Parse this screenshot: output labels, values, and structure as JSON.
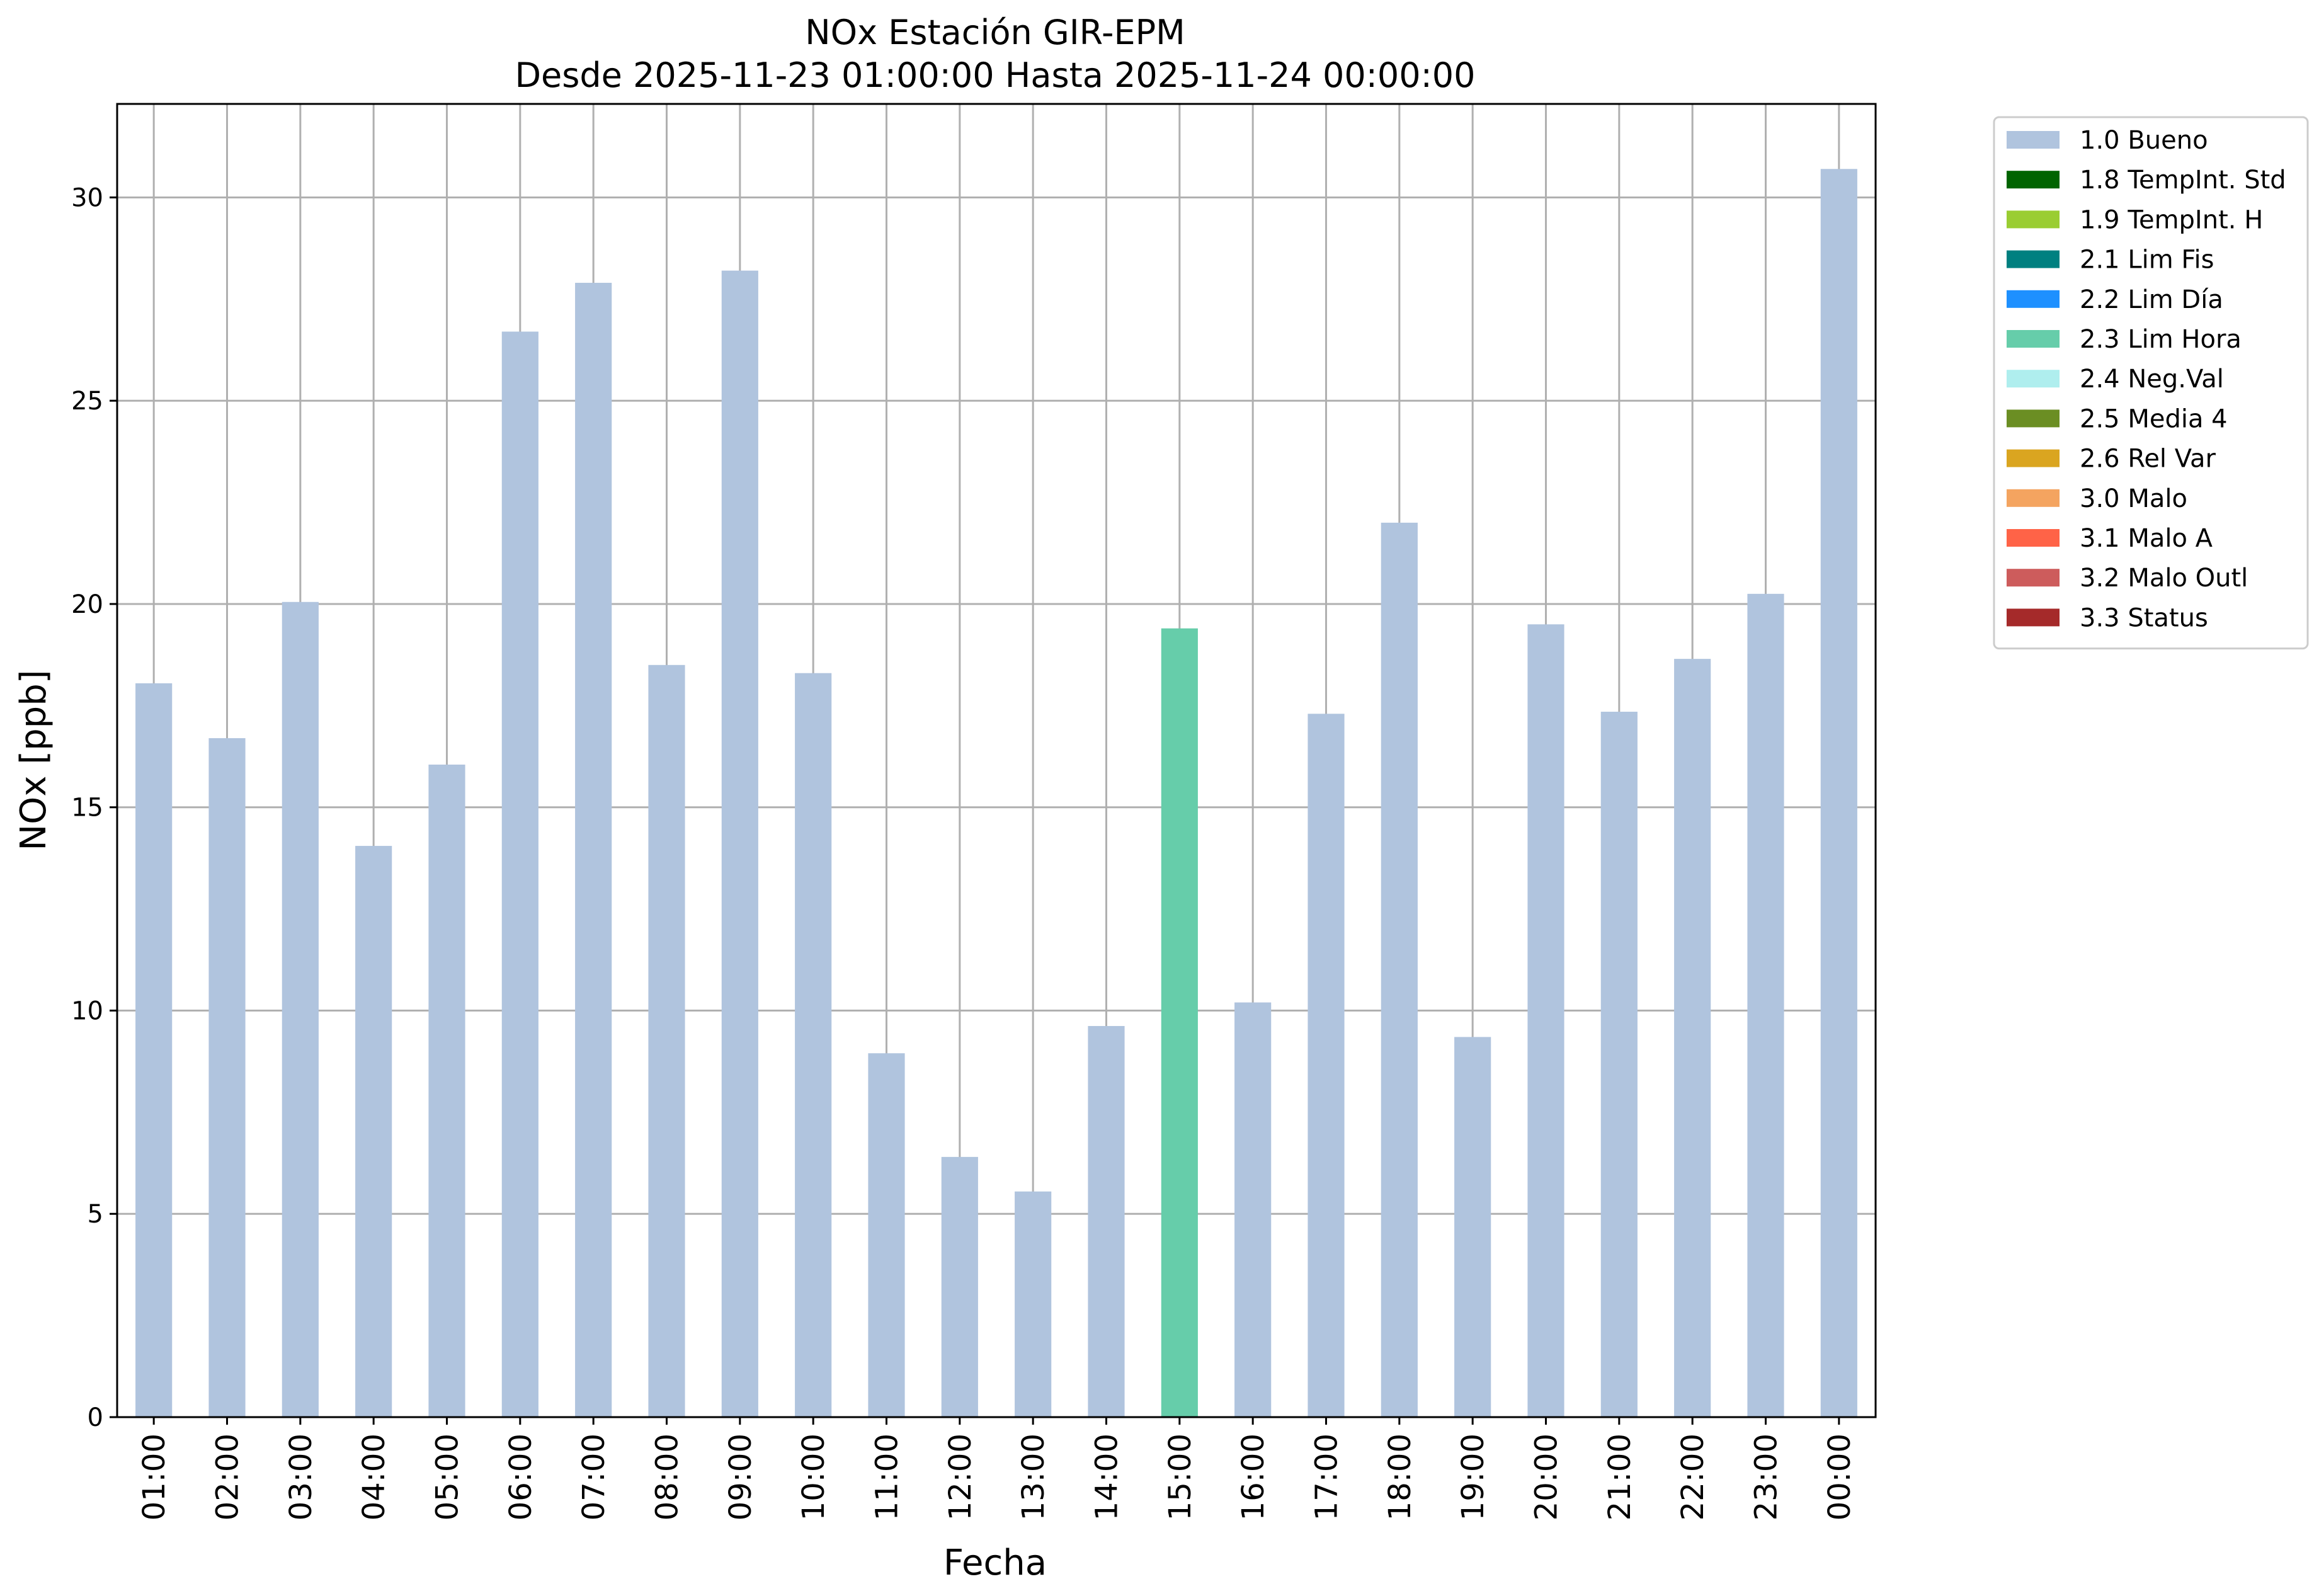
{
  "chart_data": {
    "type": "bar",
    "title": "NOx Estación GIR-EPM",
    "subtitle": "Desde 2025-11-23 01:00:00 Hasta 2025-11-24 00:00:00",
    "xlabel": "Fecha",
    "ylabel": "NOx [ppb]",
    "ylim": [
      0,
      32.3
    ],
    "yticks": [
      0,
      5,
      10,
      15,
      20,
      25,
      30
    ],
    "grid": true,
    "legend_position": "outside-top-right",
    "categories": [
      "01:00",
      "02:00",
      "03:00",
      "04:00",
      "05:00",
      "06:00",
      "07:00",
      "08:00",
      "09:00",
      "10:00",
      "11:00",
      "12:00",
      "13:00",
      "14:00",
      "15:00",
      "16:00",
      "17:00",
      "18:00",
      "19:00",
      "20:00",
      "21:00",
      "22:00",
      "23:00",
      "00:00"
    ],
    "values": [
      18.05,
      16.7,
      20.05,
      14.05,
      16.05,
      26.7,
      27.9,
      18.5,
      28.2,
      18.3,
      8.95,
      6.4,
      5.55,
      9.62,
      19.4,
      10.2,
      17.3,
      22.0,
      9.35,
      19.5,
      17.35,
      18.65,
      20.25,
      30.7
    ],
    "flags": [
      "1.0 Bueno",
      "1.0 Bueno",
      "1.0 Bueno",
      "1.0 Bueno",
      "1.0 Bueno",
      "1.0 Bueno",
      "1.0 Bueno",
      "1.0 Bueno",
      "1.0 Bueno",
      "1.0 Bueno",
      "1.0 Bueno",
      "1.0 Bueno",
      "1.0 Bueno",
      "1.0 Bueno",
      "2.3 Lim Hora",
      "1.0 Bueno",
      "1.0 Bueno",
      "1.0 Bueno",
      "1.0 Bueno",
      "1.0 Bueno",
      "1.0 Bueno",
      "1.0 Bueno",
      "1.0 Bueno",
      "1.0 Bueno"
    ],
    "legend": [
      {
        "name": "1.0 Bueno",
        "color": "#b0c4de"
      },
      {
        "name": "1.8 TempInt. Std",
        "color": "#006400"
      },
      {
        "name": "1.9 TempInt. H",
        "color": "#9acd32"
      },
      {
        "name": "2.1 Lim Fis",
        "color": "#008080"
      },
      {
        "name": "2.2 Lim Día",
        "color": "#1e90ff"
      },
      {
        "name": "2.3 Lim Hora",
        "color": "#66cdaa"
      },
      {
        "name": "2.4 Neg.Val",
        "color": "#afeeee"
      },
      {
        "name": "2.5 Media 4",
        "color": "#6b8e23"
      },
      {
        "name": "2.6 Rel Var",
        "color": "#daa520"
      },
      {
        "name": "3.0 Malo",
        "color": "#f4a460"
      },
      {
        "name": "3.1 Malo A",
        "color": "#ff6347"
      },
      {
        "name": "3.2 Malo Outl",
        "color": "#cd5c5c"
      },
      {
        "name": "3.3 Status",
        "color": "#a52a2a"
      }
    ]
  }
}
